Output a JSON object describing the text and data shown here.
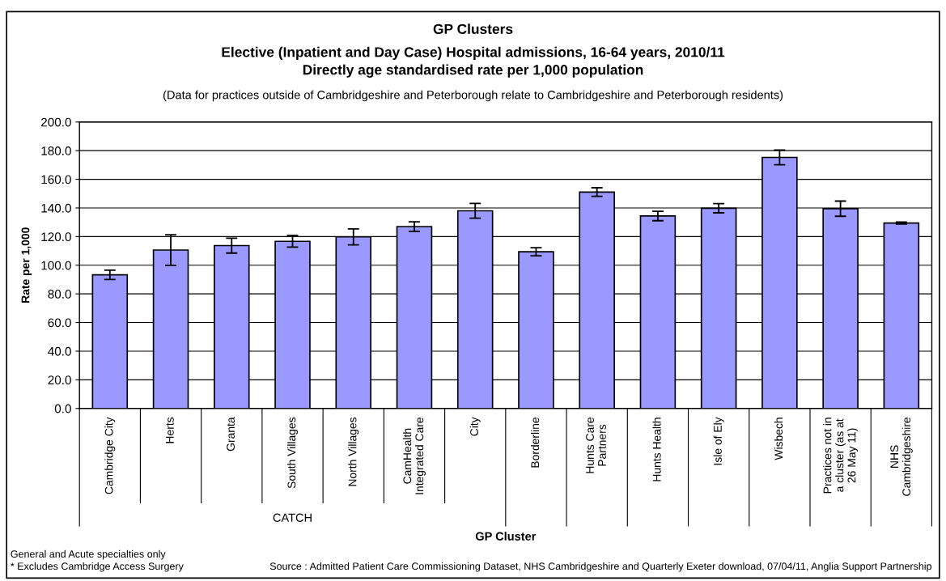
{
  "chart_data": {
    "type": "bar",
    "title": "GP Clusters",
    "subtitle": "Elective (Inpatient and Day Case) Hospital admissions, 16-64 years, 2010/11\nDirectly age standardised rate per 1,000 population",
    "xlabel": "GP Cluster",
    "ylabel": "Rate per 1,000",
    "categories": [
      "Cambridge City",
      "Herts",
      "Granta",
      "South Villages",
      "North Villages",
      "CamHealth\nIntegrated Care",
      "City",
      "Borderline",
      "Hunts Care\nPartners",
      "Hunts Health",
      "Isle of Ely",
      "Wisbech",
      "Practices not in\na cluster (as at\n26 May 11)",
      "NHS\nCambridgeshire"
    ],
    "values": [
      93.3,
      110.6,
      113.7,
      116.7,
      119.8,
      127.0,
      138.0,
      109.4,
      151.1,
      134.4,
      139.8,
      175.3,
      139.5,
      129.5
    ],
    "errors": [
      3.3,
      10.7,
      5.2,
      4.1,
      5.6,
      3.3,
      5.2,
      2.8,
      3.0,
      3.3,
      3.2,
      5.2,
      5.3,
      0.7
    ],
    "color": "#9999ff",
    "ylim": [
      0,
      200
    ],
    "yticks": [
      {
        "value": 0,
        "label": "0.0"
      },
      {
        "value": 20,
        "label": "20.0"
      },
      {
        "value": 40,
        "label": "40.0"
      },
      {
        "value": 60,
        "label": "60.0"
      },
      {
        "value": 80,
        "label": "80.0"
      },
      {
        "value": 100,
        "label": "100.0"
      },
      {
        "value": 120,
        "label": "120.0"
      },
      {
        "value": 140,
        "label": "140.0"
      },
      {
        "value": 160,
        "label": "160.0"
      },
      {
        "value": 180,
        "label": "180.0"
      },
      {
        "value": 200,
        "label": "200.0"
      }
    ],
    "grid": "y",
    "annotations": [
      "(Data for practices outside of Cambridgeshire and Peterborough relate to Cambridgeshire and Peterborough residents)",
      "CATCH",
      "General and Acute specialties only",
      "* Excludes Cambridge Access Surgery",
      "Source : Admitted Patient Care Commissioning Dataset, NHS Cambridgeshire and Quarterly Exeter download, 07/04/11, Anglia Support Partnership"
    ]
  }
}
